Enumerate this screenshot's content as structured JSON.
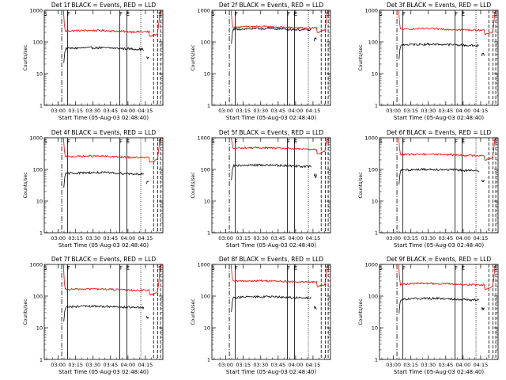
{
  "figure": {
    "colors": {
      "events": "#000000",
      "lld": "#ff0000",
      "axes": "#000000",
      "background": "#ffffff"
    }
  },
  "chart_data": [
    {
      "type": "line",
      "title": "Det 1f BLACK = Events, RED = LLD",
      "xlabel": "Start Time (05-Aug-03 02:48:40)",
      "ylabel": "Counts/sec",
      "yscale": "log",
      "ylim": [
        1,
        1000
      ],
      "ytick_labels": [
        "1",
        "10",
        "100",
        "1000"
      ],
      "xtick_labels": [
        "03:00",
        "03:15",
        "03:30",
        "03:45",
        "04:00",
        "04:15"
      ],
      "segment_labels": [
        "S",
        "F",
        "F",
        "E",
        "S"
      ],
      "series": [
        {
          "name": "Events",
          "color": "#000000",
          "level": 62
        },
        {
          "name": "LLD",
          "color": "#ff0000",
          "level": 220
        }
      ]
    },
    {
      "type": "line",
      "title": "Det 2f BLACK = Events, RED = LLD",
      "xlabel": "Start Time (05-Aug-03 02:48:40)",
      "ylabel": "Counts/sec",
      "yscale": "log",
      "ylim": [
        1,
        1000
      ],
      "ytick_labels": [
        "1",
        "10",
        "100",
        "1000"
      ],
      "xtick_labels": [
        "03:00",
        "03:15",
        "03:30",
        "03:45",
        "04:00",
        "04:15"
      ],
      "segment_labels": [
        "S",
        "F",
        "F",
        "E",
        "S"
      ],
      "series": [
        {
          "name": "Events",
          "color": "#000000",
          "level": 250
        },
        {
          "name": "LLD",
          "color": "#ff0000",
          "level": 290
        }
      ]
    },
    {
      "type": "line",
      "title": "Det 3f BLACK = Events, RED = LLD",
      "xlabel": "Start Time (05-Aug-03 02:48:40)",
      "ylabel": "Counts/sec",
      "yscale": "log",
      "ylim": [
        1,
        1000
      ],
      "ytick_labels": [
        "1",
        "10",
        "100",
        "1000"
      ],
      "xtick_labels": [
        "03:00",
        "03:15",
        "03:30",
        "03:45",
        "04:00",
        "04:15"
      ],
      "segment_labels": [
        "S",
        "F",
        "F",
        "E",
        "S"
      ],
      "series": [
        {
          "name": "Events",
          "color": "#000000",
          "level": 80
        },
        {
          "name": "LLD",
          "color": "#ff0000",
          "level": 250
        }
      ]
    },
    {
      "type": "line",
      "title": "Det 4f BLACK = Events, RED = LLD",
      "xlabel": "Start Time (05-Aug-03 02:48:40)",
      "ylabel": "Counts/sec",
      "yscale": "log",
      "ylim": [
        1,
        1000
      ],
      "ytick_labels": [
        "1",
        "10",
        "100",
        "1000"
      ],
      "xtick_labels": [
        "03:00",
        "03:15",
        "03:30",
        "03:45",
        "04:00",
        "04:15"
      ],
      "segment_labels": [
        "S",
        "F",
        "F",
        "E",
        "S"
      ],
      "series": [
        {
          "name": "Events",
          "color": "#000000",
          "level": 75
        },
        {
          "name": "LLD",
          "color": "#ff0000",
          "level": 250
        }
      ]
    },
    {
      "type": "line",
      "title": "Det 5f BLACK = Events, RED = LLD",
      "xlabel": "Start Time (05-Aug-03 02:48:40)",
      "ylabel": "Counts/sec",
      "yscale": "log",
      "ylim": [
        1,
        1000
      ],
      "ytick_labels": [
        "1",
        "10",
        "100",
        "1000"
      ],
      "xtick_labels": [
        "03:00",
        "03:15",
        "03:30",
        "03:45",
        "04:00",
        "04:15"
      ],
      "segment_labels": [
        "S",
        "F",
        "F",
        "E",
        "S"
      ],
      "series": [
        {
          "name": "Events",
          "color": "#000000",
          "level": 130
        },
        {
          "name": "LLD",
          "color": "#ff0000",
          "level": 460
        }
      ]
    },
    {
      "type": "line",
      "title": "Det 6f BLACK = Events, RED = LLD",
      "xlabel": "Start Time (05-Aug-03 02:48:40)",
      "ylabel": "Counts/sec",
      "yscale": "log",
      "ylim": [
        1,
        1000
      ],
      "ytick_labels": [
        "1",
        "10",
        "100",
        "1000"
      ],
      "xtick_labels": [
        "03:00",
        "03:15",
        "03:30",
        "03:45",
        "04:00",
        "04:15"
      ],
      "segment_labels": [
        "S",
        "F",
        "F",
        "E",
        "S"
      ],
      "series": [
        {
          "name": "Events",
          "color": "#000000",
          "level": 95
        },
        {
          "name": "LLD",
          "color": "#ff0000",
          "level": 290
        }
      ]
    },
    {
      "type": "line",
      "title": "Det 7f BLACK = Events, RED = LLD",
      "xlabel": "Start Time (05-Aug-03 02:48:40)",
      "ylabel": "Counts/sec",
      "yscale": "log",
      "ylim": [
        1,
        1000
      ],
      "ytick_labels": [
        "1",
        "10",
        "100",
        "1000"
      ],
      "xtick_labels": [
        "03:00",
        "03:15",
        "03:30",
        "03:45",
        "04:00",
        "04:15"
      ],
      "segment_labels": [
        "S",
        "F",
        "F",
        "E",
        "S"
      ],
      "series": [
        {
          "name": "Events",
          "color": "#000000",
          "level": 45
        },
        {
          "name": "LLD",
          "color": "#ff0000",
          "level": 160
        }
      ]
    },
    {
      "type": "line",
      "title": "Det 8f BLACK = Events, RED = LLD",
      "xlabel": "Start Time (05-Aug-03 02:48:40)",
      "ylabel": "Counts/sec",
      "yscale": "log",
      "ylim": [
        1,
        1000
      ],
      "ytick_labels": [
        "1",
        "10",
        "100",
        "1000"
      ],
      "xtick_labels": [
        "03:00",
        "03:15",
        "03:30",
        "03:45",
        "04:00",
        "04:15"
      ],
      "segment_labels": [
        "S",
        "F",
        "F",
        "E",
        "S"
      ],
      "series": [
        {
          "name": "Events",
          "color": "#000000",
          "level": 90
        },
        {
          "name": "LLD",
          "color": "#ff0000",
          "level": 290
        }
      ]
    },
    {
      "type": "line",
      "title": "Det 9f BLACK = Events, RED = LLD",
      "xlabel": "Start Time (05-Aug-03 02:48:40)",
      "ylabel": "Counts/sec",
      "yscale": "log",
      "ylim": [
        1,
        1000
      ],
      "ytick_labels": [
        "1",
        "10",
        "100",
        "1000"
      ],
      "xtick_labels": [
        "03:00",
        "03:15",
        "03:30",
        "03:45",
        "04:00",
        "04:15"
      ],
      "segment_labels": [
        "S",
        "F",
        "F",
        "E",
        "S"
      ],
      "series": [
        {
          "name": "Events",
          "color": "#000000",
          "level": 80
        },
        {
          "name": "LLD",
          "color": "#ff0000",
          "level": 240
        }
      ]
    }
  ]
}
